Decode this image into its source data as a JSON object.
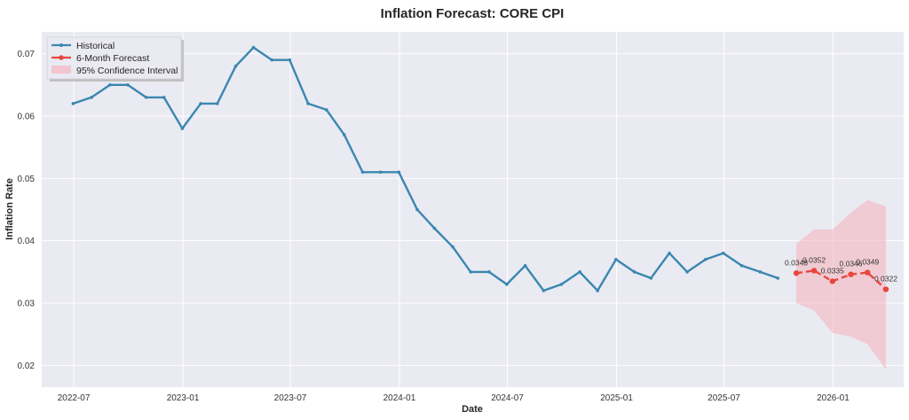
{
  "chart_data": {
    "type": "line",
    "title": "Inflation Forecast: CORE CPI",
    "xlabel": "Date",
    "ylabel": "Inflation Rate",
    "xlim": [
      "2022-05-08",
      "2026-04-30"
    ],
    "ylim": [
      0.0165,
      0.0735
    ],
    "x_ticks": [
      {
        "date": "2022-07-01",
        "label": "2022-07"
      },
      {
        "date": "2023-01-01",
        "label": "2023-01"
      },
      {
        "date": "2023-07-01",
        "label": "2023-07"
      },
      {
        "date": "2024-01-01",
        "label": "2024-01"
      },
      {
        "date": "2024-07-01",
        "label": "2024-07"
      },
      {
        "date": "2025-01-01",
        "label": "2025-01"
      },
      {
        "date": "2025-07-01",
        "label": "2025-07"
      },
      {
        "date": "2026-01-01",
        "label": "2026-01"
      }
    ],
    "y_ticks": [
      {
        "value": 0.02,
        "label": "0.02"
      },
      {
        "value": 0.03,
        "label": "0.03"
      },
      {
        "value": 0.04,
        "label": "0.04"
      },
      {
        "value": 0.05,
        "label": "0.05"
      },
      {
        "value": 0.06,
        "label": "0.06"
      },
      {
        "value": 0.07,
        "label": "0.07"
      }
    ],
    "grid": true,
    "legend_position": "top-left",
    "colors": {
      "historical": "#3a87b0",
      "forecast": "#e8473d",
      "confidence": "#f4b6c0",
      "plot_background": "#eaeaf2"
    },
    "series": [
      {
        "name": "Historical",
        "x": [
          "2022-06-30",
          "2022-07-31",
          "2022-08-31",
          "2022-09-30",
          "2022-10-31",
          "2022-11-30",
          "2022-12-31",
          "2023-01-31",
          "2023-02-28",
          "2023-03-31",
          "2023-04-30",
          "2023-05-31",
          "2023-06-30",
          "2023-07-31",
          "2023-08-31",
          "2023-09-30",
          "2023-10-31",
          "2023-11-30",
          "2023-12-31",
          "2024-01-31",
          "2024-02-29",
          "2024-03-31",
          "2024-04-30",
          "2024-05-31",
          "2024-06-30",
          "2024-07-31",
          "2024-08-31",
          "2024-09-30",
          "2024-10-31",
          "2024-11-30",
          "2024-12-31",
          "2025-01-31",
          "2025-02-28",
          "2025-03-31",
          "2025-04-30",
          "2025-05-31",
          "2025-06-30",
          "2025-07-31",
          "2025-08-31",
          "2025-09-30"
        ],
        "values": [
          0.062,
          0.063,
          0.065,
          0.065,
          0.063,
          0.063,
          0.058,
          0.062,
          0.062,
          0.068,
          0.071,
          0.069,
          0.069,
          0.062,
          0.061,
          0.057,
          0.051,
          0.051,
          0.051,
          0.045,
          0.042,
          0.039,
          0.035,
          0.035,
          0.033,
          0.036,
          0.032,
          0.033,
          0.035,
          0.032,
          0.037,
          0.035,
          0.034,
          0.038,
          0.035,
          0.037,
          0.038,
          0.036,
          0.035,
          0.034
        ]
      },
      {
        "name": "6-Month Forecast",
        "x": [
          "2025-10-31",
          "2025-11-30",
          "2025-12-31",
          "2026-01-31",
          "2026-02-28",
          "2026-03-31"
        ],
        "values": [
          0.0348,
          0.0352,
          0.0335,
          0.0346,
          0.0349,
          0.0322
        ],
        "labels": [
          "0.0348",
          "0.0352",
          "0.0335",
          "0.0346",
          "0.0349",
          "0.0322"
        ]
      }
    ],
    "confidence_interval": {
      "name": "95% Confidence Interval",
      "x": [
        "2025-10-31",
        "2025-11-30",
        "2025-12-31",
        "2026-01-31",
        "2026-02-28",
        "2026-03-31"
      ],
      "upper": [
        0.0395,
        0.0418,
        0.0418,
        0.0445,
        0.0465,
        0.0455
      ],
      "lower": [
        0.03,
        0.0288,
        0.0252,
        0.0246,
        0.0234,
        0.0193
      ]
    }
  }
}
